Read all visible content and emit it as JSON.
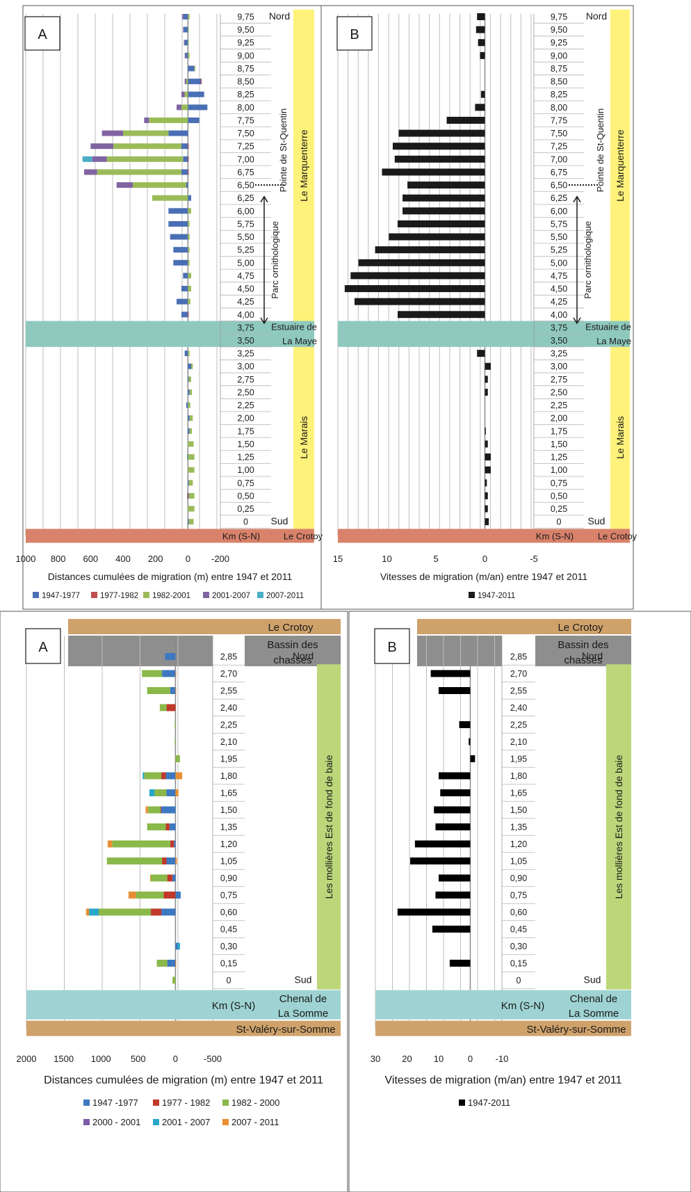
{
  "chart_data": [
    {
      "panel_label": "A",
      "type": "bar",
      "orientation": "horizontal-stacked",
      "xlabel": "Distances cumulées de migration (m) entre 1947 et 2011",
      "xlim": [
        1000,
        -200
      ],
      "xticks": [
        1000,
        800,
        600,
        400,
        200,
        0,
        -200
      ],
      "axis_caption": "Km (S-N)",
      "bottom_band": "Le Crotoy",
      "dir_top": "Nord",
      "dir_bottom": "Sud",
      "categories": [
        "9,75",
        "9,50",
        "9,25",
        "9,00",
        "8,75",
        "8,50",
        "8,25",
        "8,00",
        "7,75",
        "7,50",
        "7,25",
        "7,00",
        "6,75",
        "6,50",
        "6,25",
        "6,00",
        "5,75",
        "5,50",
        "5,25",
        "5,00",
        "4,75",
        "4,50",
        "4,25",
        "4,00",
        "3,75",
        "3,50",
        "3,25",
        "3,00",
        "2,75",
        "2,50",
        "2,25",
        "2,00",
        "1,75",
        "1,50",
        "1,25",
        "1,00",
        "0,75",
        "0,50",
        "0,25",
        "0"
      ],
      "series": [
        {
          "name": "1947-1977",
          "color": "#4a6fb5",
          "values": [
            30,
            25,
            20,
            15,
            -40,
            -80,
            -100,
            -120,
            -70,
            120,
            40,
            30,
            40,
            10,
            -20,
            120,
            120,
            110,
            90,
            90,
            30,
            40,
            70,
            40,
            null,
            null,
            20,
            -20,
            -5,
            -10,
            10,
            -10,
            -10,
            0,
            5,
            0,
            -5,
            -5,
            0,
            -5
          ]
        },
        {
          "name": "1977-1982",
          "color": "#c0504d",
          "values": [
            0,
            0,
            0,
            0,
            0,
            -5,
            0,
            0,
            0,
            0,
            -5,
            -5,
            -5,
            0,
            0,
            0,
            0,
            0,
            0,
            0,
            0,
            0,
            0,
            -5,
            null,
            null,
            0,
            0,
            0,
            0,
            0,
            0,
            0,
            0,
            0,
            0,
            0,
            5,
            0,
            0
          ]
        },
        {
          "name": "1982-2001",
          "color": "#9bbb59",
          "values": [
            -10,
            -5,
            -5,
            -10,
            -5,
            10,
            20,
            40,
            240,
            280,
            420,
            470,
            520,
            330,
            220,
            -20,
            -10,
            -10,
            -10,
            -10,
            -20,
            -20,
            -15,
            null,
            null,
            null,
            -10,
            -10,
            -15,
            -15,
            -15,
            -20,
            -15,
            -35,
            -40,
            -40,
            -25,
            -35,
            -40,
            -30
          ]
        },
        {
          "name": "2001-2007",
          "color": "#8064a2",
          "values": [
            5,
            5,
            5,
            5,
            0,
            10,
            20,
            30,
            30,
            130,
            140,
            90,
            80,
            100,
            0,
            0,
            0,
            0,
            0,
            0,
            0,
            0,
            0,
            0,
            null,
            null,
            0,
            0,
            0,
            0,
            0,
            0,
            0,
            0,
            0,
            0,
            0,
            0,
            0,
            0
          ]
        },
        {
          "name": "2007-2011",
          "color": "#4bacc6",
          "values": [
            0,
            0,
            0,
            0,
            0,
            0,
            0,
            0,
            0,
            0,
            0,
            60,
            0,
            0,
            0,
            0,
            0,
            0,
            0,
            0,
            0,
            0,
            0,
            0,
            null,
            null,
            0,
            0,
            0,
            0,
            0,
            0,
            0,
            0,
            0,
            0,
            0,
            0,
            0,
            0
          ]
        }
      ],
      "zones": [
        {
          "label": "Le Marquenterre",
          "from": "4,00",
          "to": "9,75",
          "color": "#fff27a"
        },
        {
          "label": "Le Marais",
          "from": "0",
          "to": "3,25",
          "color": "#fff27a"
        }
      ],
      "bands": [
        {
          "label_lines": [
            "Estuaire de",
            "La Maye"
          ],
          "from": "3,75",
          "to": "3,50",
          "color": "#8fc9bd"
        }
      ],
      "annotations": {
        "point_label": "Pointe de St-Quentin",
        "point_at": "6,50",
        "range_label": "Parc ornithologique",
        "range_from": "6,25",
        "range_to": "3,75"
      }
    },
    {
      "panel_label": "B",
      "type": "bar",
      "orientation": "horizontal",
      "xlabel": "Vitesses de migration (m/an) entre 1947 et 2011",
      "xlim": [
        15,
        -5
      ],
      "xticks": [
        15,
        10,
        5,
        0,
        -5
      ],
      "axis_caption": "Km (S-N)",
      "bottom_band": "Le Crotoy",
      "dir_top": "Nord",
      "dir_bottom": "Sud",
      "categories": [
        "9,75",
        "9,50",
        "9,25",
        "9,00",
        "8,75",
        "8,50",
        "8,25",
        "8,00",
        "7,75",
        "7,50",
        "7,25",
        "7,00",
        "6,75",
        "6,50",
        "6,25",
        "6,00",
        "5,75",
        "5,50",
        "5,25",
        "5,00",
        "4,75",
        "4,50",
        "4,25",
        "4,00",
        "3,75",
        "3,50",
        "3,25",
        "3,00",
        "2,75",
        "2,50",
        "2,25",
        "2,00",
        "1,75",
        "1,50",
        "1,25",
        "1,00",
        "0,75",
        "0,50",
        "0,25",
        "0"
      ],
      "series": [
        {
          "name": "1947-2011",
          "color": "#1a1a1a",
          "values": [
            0.8,
            0.9,
            0.7,
            0.5,
            0,
            0,
            0.4,
            1.0,
            3.9,
            8.8,
            9.4,
            9.2,
            10.5,
            7.9,
            8.4,
            8.4,
            8.9,
            9.8,
            11.2,
            12.9,
            13.7,
            14.3,
            13.3,
            8.9,
            null,
            null,
            0.8,
            -0.6,
            -0.3,
            -0.3,
            0,
            0,
            -0.1,
            -0.3,
            -0.6,
            -0.6,
            -0.2,
            -0.3,
            -0.3,
            -0.4
          ]
        }
      ],
      "zones": [
        {
          "label": "Le Marquenterre",
          "from": "4,00",
          "to": "9,75",
          "color": "#fff27a"
        },
        {
          "label": "Le Marais",
          "from": "0",
          "to": "3,25",
          "color": "#fff27a"
        }
      ],
      "bands": [
        {
          "label_lines": [
            "Estuaire de",
            "La Maye"
          ],
          "from": "3,75",
          "to": "3,50",
          "color": "#8fc9bd"
        }
      ],
      "annotations": {
        "point_label": "Pointe de St-Quentin",
        "point_at": "6,50",
        "range_label": "Parc ornithologique",
        "range_from": "6,25",
        "range_to": "3,75"
      }
    },
    {
      "panel_label": "A",
      "type": "bar",
      "orientation": "horizontal-stacked",
      "xlabel": "Distances cumulées de migration (m) entre 1947 et 2011",
      "xlim": [
        2000,
        -500
      ],
      "xticks": [
        2000,
        1500,
        1000,
        500,
        0,
        -500
      ],
      "axis_caption": "Km (S-N)",
      "top_bands": [
        {
          "label": "Le Crotoy",
          "color": "#cfa26b"
        },
        {
          "label_lines": [
            "Bassin des",
            "chasses"
          ],
          "color": "#8e8e8e"
        }
      ],
      "bottom_bands": [
        {
          "label_lines": [
            "Chenal de",
            "La Somme"
          ],
          "color": "#9fd3d3"
        },
        {
          "label": "St-Valéry-sur-Somme",
          "color": "#cfa26b"
        }
      ],
      "dir_top": "Nord",
      "dir_bottom": "Sud",
      "categories": [
        "2,85",
        "2,70",
        "2,55",
        "2,40",
        "2,25",
        "2,10",
        "1,95",
        "1,80",
        "1,65",
        "1,50",
        "1,35",
        "1,20",
        "1,05",
        "0,90",
        "0,75",
        "0,60",
        "0,45",
        "0,30",
        "0,15",
        "0"
      ],
      "series": [
        {
          "name": "1947 -1977",
          "color": "#3d78c1",
          "values": [
            140,
            180,
            70,
            0,
            0,
            0,
            0,
            130,
            120,
            190,
            80,
            20,
            120,
            40,
            -70,
            190,
            0,
            -30,
            110,
            0
          ]
        },
        {
          "name": "1977 - 1982",
          "color": "#c0392b",
          "values": [
            0,
            0,
            0,
            120,
            0,
            0,
            0,
            60,
            0,
            10,
            50,
            50,
            60,
            70,
            160,
            140,
            0,
            0,
            0,
            0
          ]
        },
        {
          "name": "1982 - 2000",
          "color": "#8bb84a",
          "values": [
            0,
            270,
            310,
            90,
            10,
            10,
            -60,
            230,
            160,
            170,
            250,
            780,
            740,
            220,
            370,
            700,
            0,
            0,
            140,
            40
          ]
        },
        {
          "name": "2000 - 2001",
          "color": "#7e5ca6",
          "values": [
            0,
            0,
            0,
            0,
            0,
            0,
            0,
            0,
            0,
            0,
            0,
            0,
            0,
            0,
            0,
            0,
            0,
            0,
            0,
            0
          ]
        },
        {
          "name": "2001 - 2007",
          "color": "#2aa7c6",
          "values": [
            0,
            0,
            0,
            0,
            0,
            0,
            0,
            20,
            70,
            0,
            0,
            0,
            0,
            0,
            0,
            130,
            0,
            -30,
            0,
            0
          ]
        },
        {
          "name": "2007 - 2011",
          "color": "#e88f34",
          "values": [
            0,
            -10,
            -10,
            0,
            0,
            0,
            0,
            -90,
            -40,
            30,
            0,
            60,
            -20,
            10,
            100,
            40,
            0,
            0,
            -10,
            0
          ]
        }
      ],
      "zones": [
        {
          "label": "Les mollières Est de fond de baie",
          "from": "0",
          "to": "2,70",
          "color": "#bcd77a"
        }
      ]
    },
    {
      "panel_label": "B",
      "type": "bar",
      "orientation": "horizontal",
      "xlabel": "Vitesses de migration (m/an) entre 1947 et 2011",
      "xlim": [
        30,
        -10
      ],
      "xticks": [
        30,
        20,
        10,
        0,
        -10
      ],
      "axis_caption": "Km (S-N)",
      "top_bands": [
        {
          "label": "Le Crotoy",
          "color": "#cfa26b"
        },
        {
          "label_lines": [
            "Bassin des",
            "chasses"
          ],
          "color": "#8e8e8e"
        }
      ],
      "bottom_bands": [
        {
          "label_lines": [
            "Chenal de",
            "La Somme"
          ],
          "color": "#9fd3d3"
        },
        {
          "label": "St-Valéry-sur-Somme",
          "color": "#cfa26b"
        }
      ],
      "dir_top": "Nord",
      "dir_bottom": "Sud",
      "categories": [
        "2,85",
        "2,70",
        "2,55",
        "2,40",
        "2,25",
        "2,10",
        "1,95",
        "1,80",
        "1,65",
        "1,50",
        "1,35",
        "1,20",
        "1,05",
        "0,90",
        "0,75",
        "0,60",
        "0,45",
        "0,30",
        "0,15",
        "0"
      ],
      "series": [
        {
          "name": "1947-2011",
          "color": "#000000",
          "values": [
            null,
            12.5,
            10,
            null,
            3.5,
            0.5,
            -1.5,
            10,
            9.5,
            11.5,
            11,
            17.5,
            19,
            10,
            11,
            23,
            12,
            null,
            6.5,
            null
          ]
        }
      ],
      "zones": [
        {
          "label": "Les mollières Est de fond de baie",
          "from": "0",
          "to": "2,70",
          "color": "#bcd77a"
        }
      ]
    }
  ]
}
